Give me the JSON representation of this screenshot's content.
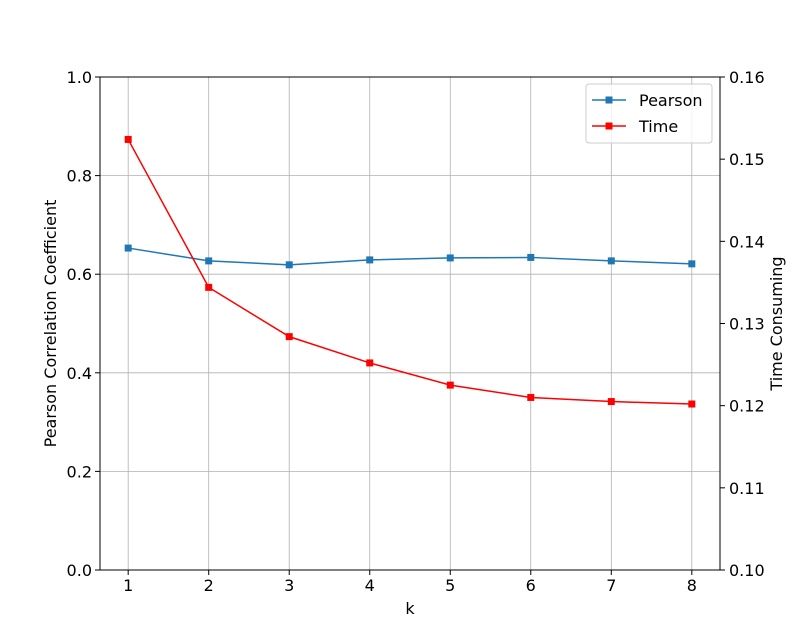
{
  "chart_data": {
    "type": "line",
    "title": "",
    "xlabel": "k",
    "ylabel_left": "Pearson Correlation Coefficient",
    "ylabel_right": "Time Consuming",
    "x": [
      1,
      2,
      3,
      4,
      5,
      6,
      7,
      8
    ],
    "xticks": [
      "1",
      "2",
      "3",
      "4",
      "5",
      "6",
      "7",
      "8"
    ],
    "ylim_left": [
      0.0,
      1.0
    ],
    "yticks_left": [
      "0.0",
      "0.2",
      "0.4",
      "0.6",
      "0.8",
      "1.0"
    ],
    "ylim_right": [
      0.1,
      0.16
    ],
    "yticks_right": [
      "0.10",
      "0.11",
      "0.12",
      "0.13",
      "0.14",
      "0.15",
      "0.16"
    ],
    "grid": true,
    "legend_position": "top-right",
    "series": [
      {
        "name": "Pearson",
        "axis": "left",
        "color": "#1f77b4",
        "marker": "square",
        "values": [
          0.653,
          0.627,
          0.619,
          0.629,
          0.633,
          0.634,
          0.627,
          0.621
        ]
      },
      {
        "name": "Time",
        "axis": "right",
        "color": "#ff0000",
        "marker": "square",
        "values": [
          0.1524,
          0.1344,
          0.1284,
          0.1252,
          0.1225,
          0.121,
          0.1205,
          0.1202
        ]
      }
    ]
  }
}
